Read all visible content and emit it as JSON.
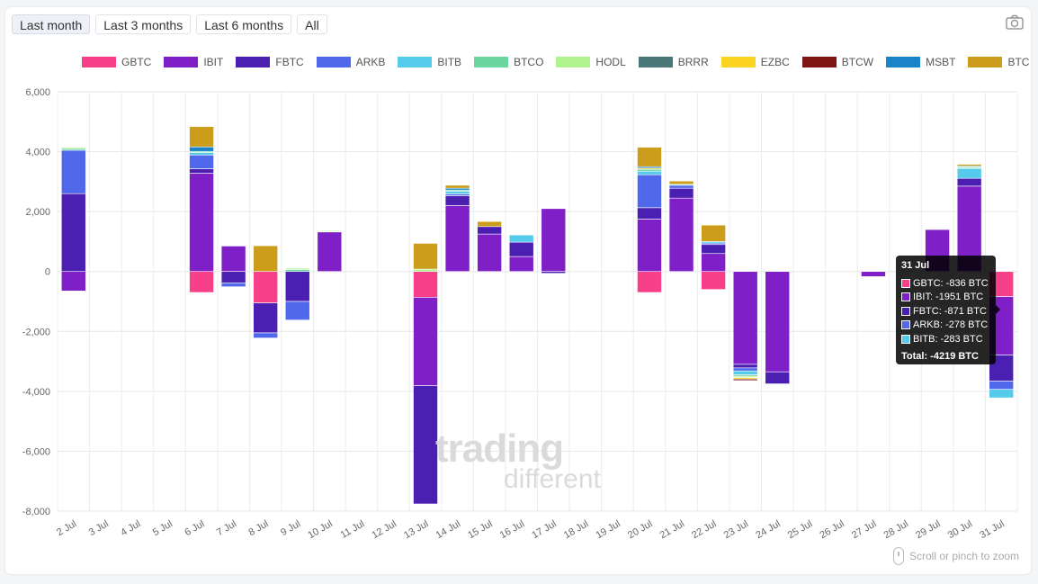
{
  "range_buttons": [
    {
      "label": "Last month",
      "active": true
    },
    {
      "label": "Last 3 months",
      "active": false
    },
    {
      "label": "Last 6 months",
      "active": false
    },
    {
      "label": "All",
      "active": false
    }
  ],
  "camera_icon": "camera-icon",
  "zoom_hint": "Scroll or pinch to zoom",
  "watermark": {
    "line1": "trading",
    "line2": "different"
  },
  "tooltip": {
    "title": "31 Jul",
    "rows": [
      {
        "text": "GBTC: -836 BTC",
        "color": "#f73f8a"
      },
      {
        "text": "IBIT: -1951 BTC",
        "color": "#7f1fc7"
      },
      {
        "text": "FBTC: -871 BTC",
        "color": "#4a1fb2"
      },
      {
        "text": "ARKB: -278 BTC",
        "color": "#5068ec"
      },
      {
        "text": "BITB: -283 BTC",
        "color": "#55cbeb"
      }
    ],
    "total": "Total: -4219 BTC"
  },
  "chart_data": {
    "type": "bar",
    "stacked": true,
    "title": "",
    "xlabel": "",
    "ylabel": "",
    "ylim": [
      -8000,
      6000
    ],
    "yticks": [
      6000,
      4000,
      2000,
      0,
      -2000,
      -4000,
      -6000,
      -8000
    ],
    "ytick_labels": [
      "6,000",
      "4,000",
      "2,000",
      "0",
      "-2,000",
      "-4,000",
      "-6,000",
      "-8,000"
    ],
    "grid": true,
    "legend_position": "top",
    "categories": [
      "2 Jul",
      "3 Jul",
      "4 Jul",
      "5 Jul",
      "6 Jul",
      "7 Jul",
      "8 Jul",
      "9 Jul",
      "10 Jul",
      "11 Jul",
      "12 Jul",
      "13 Jul",
      "14 Jul",
      "15 Jul",
      "16 Jul",
      "17 Jul",
      "18 Jul",
      "19 Jul",
      "20 Jul",
      "21 Jul",
      "22 Jul",
      "23 Jul",
      "24 Jul",
      "25 Jul",
      "26 Jul",
      "27 Jul",
      "28 Jul",
      "29 Jul",
      "30 Jul",
      "31 Jul"
    ],
    "series": [
      {
        "name": "GBTC",
        "color": "#f73f8a",
        "values": [
          0,
          0,
          0,
          0,
          -700,
          0,
          -1050,
          0,
          0,
          0,
          0,
          -860,
          0,
          0,
          0,
          0,
          0,
          0,
          -700,
          0,
          -600,
          0,
          0,
          0,
          0,
          0,
          0,
          0,
          0,
          -836
        ]
      },
      {
        "name": "IBIT",
        "color": "#7f1fc7",
        "values": [
          -650,
          0,
          0,
          0,
          3280,
          850,
          0,
          0,
          1320,
          0,
          0,
          -2950,
          2200,
          1250,
          500,
          2100,
          0,
          0,
          1750,
          2450,
          600,
          -3100,
          -3350,
          0,
          0,
          -170,
          0,
          1400,
          2850,
          -1951
        ]
      },
      {
        "name": "FBTC",
        "color": "#4a1fb2",
        "values": [
          2600,
          0,
          0,
          0,
          150,
          -380,
          -1000,
          -1000,
          0,
          0,
          0,
          -3950,
          330,
          250,
          480,
          -60,
          0,
          0,
          380,
          330,
          300,
          -120,
          -400,
          0,
          0,
          0,
          0,
          0,
          260,
          -871
        ]
      },
      {
        "name": "ARKB",
        "color": "#5068ec",
        "values": [
          1450,
          0,
          0,
          0,
          460,
          -130,
          -170,
          -620,
          0,
          0,
          0,
          0,
          60,
          0,
          0,
          0,
          0,
          0,
          1100,
          100,
          50,
          -100,
          0,
          0,
          0,
          0,
          0,
          0,
          0,
          -278
        ]
      },
      {
        "name": "BITB",
        "color": "#55cbeb",
        "values": [
          0,
          0,
          0,
          0,
          80,
          0,
          0,
          0,
          0,
          0,
          0,
          0,
          90,
          0,
          240,
          0,
          0,
          0,
          120,
          30,
          50,
          -130,
          0,
          0,
          0,
          0,
          0,
          0,
          330,
          -283
        ]
      },
      {
        "name": "BTCO",
        "color": "#6dd6a0",
        "values": [
          60,
          0,
          0,
          0,
          40,
          0,
          0,
          70,
          30,
          0,
          0,
          0,
          40,
          0,
          0,
          0,
          0,
          0,
          60,
          0,
          0,
          -50,
          0,
          0,
          0,
          0,
          0,
          0,
          30,
          0
        ]
      },
      {
        "name": "HODL",
        "color": "#b1f48e",
        "values": [
          40,
          0,
          0,
          0,
          0,
          0,
          0,
          40,
          20,
          0,
          0,
          80,
          0,
          0,
          0,
          0,
          0,
          0,
          0,
          0,
          0,
          -40,
          0,
          0,
          0,
          0,
          0,
          0,
          30,
          0
        ]
      },
      {
        "name": "BRRR",
        "color": "#4a7878",
        "values": [
          0,
          0,
          0,
          0,
          0,
          0,
          0,
          0,
          0,
          0,
          0,
          0,
          0,
          0,
          0,
          0,
          0,
          0,
          0,
          0,
          0,
          0,
          0,
          0,
          0,
          0,
          0,
          0,
          30,
          0
        ]
      },
      {
        "name": "EZBC",
        "color": "#fdd322",
        "values": [
          0,
          0,
          0,
          0,
          0,
          0,
          0,
          0,
          0,
          0,
          0,
          0,
          0,
          0,
          0,
          0,
          0,
          0,
          40,
          0,
          0,
          -50,
          0,
          0,
          0,
          0,
          0,
          0,
          0,
          0
        ]
      },
      {
        "name": "BTCW",
        "color": "#7f1414",
        "values": [
          0,
          0,
          0,
          0,
          0,
          0,
          0,
          0,
          0,
          0,
          0,
          0,
          0,
          0,
          0,
          0,
          0,
          0,
          0,
          0,
          0,
          -50,
          0,
          0,
          0,
          0,
          0,
          0,
          0,
          0
        ]
      },
      {
        "name": "MSBT",
        "color": "#1a84c8",
        "values": [
          0,
          0,
          0,
          0,
          150,
          0,
          0,
          0,
          0,
          0,
          0,
          0,
          60,
          0,
          0,
          0,
          0,
          0,
          50,
          0,
          0,
          0,
          0,
          0,
          0,
          0,
          0,
          0,
          0,
          0
        ]
      },
      {
        "name": "BTC",
        "color": "#cc9c1b",
        "values": [
          0,
          0,
          0,
          0,
          680,
          0,
          860,
          0,
          0,
          0,
          0,
          860,
          100,
          170,
          0,
          0,
          0,
          0,
          650,
          110,
          550,
          0,
          0,
          0,
          0,
          0,
          0,
          0,
          50,
          0
        ]
      }
    ]
  }
}
